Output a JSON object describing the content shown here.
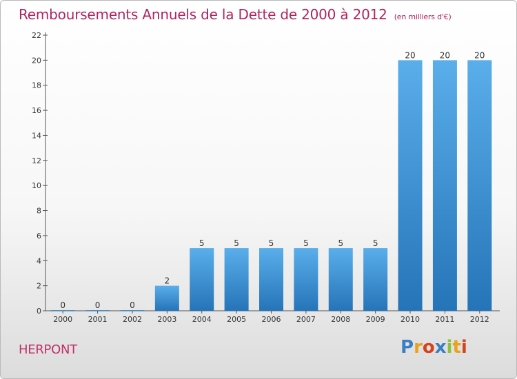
{
  "chart_data": {
    "type": "bar",
    "title": "Remboursements Annuels de la Dette de 2000 à 2012",
    "unit": "(en milliers d'€)",
    "categories": [
      "2000",
      "2001",
      "2002",
      "2003",
      "2004",
      "2005",
      "2006",
      "2007",
      "2008",
      "2009",
      "2010",
      "2011",
      "2012"
    ],
    "values": [
      0,
      0,
      0,
      2,
      5,
      5,
      5,
      5,
      5,
      5,
      20,
      20,
      20
    ],
    "value_labels": [
      "0",
      "0",
      "0",
      "2",
      "5",
      "5",
      "5",
      "5",
      "5",
      "5",
      "20",
      "20",
      "20"
    ],
    "ylim": [
      0,
      22
    ],
    "yticks": [
      0,
      2,
      4,
      6,
      8,
      10,
      12,
      14,
      16,
      18,
      20,
      22
    ],
    "ytick_labels": [
      "0",
      "2",
      "4",
      "6",
      "8",
      "10",
      "12",
      "14",
      "16",
      "18",
      "20",
      "22"
    ],
    "grid": false,
    "bar_color": "#3d8fd6",
    "bar_color_light": "#5aaeea",
    "title_color": "#b2245d"
  },
  "commune": "HERPONT",
  "logo": {
    "letters": [
      "P",
      "r",
      "o",
      "x",
      "i",
      "t",
      "i"
    ]
  }
}
